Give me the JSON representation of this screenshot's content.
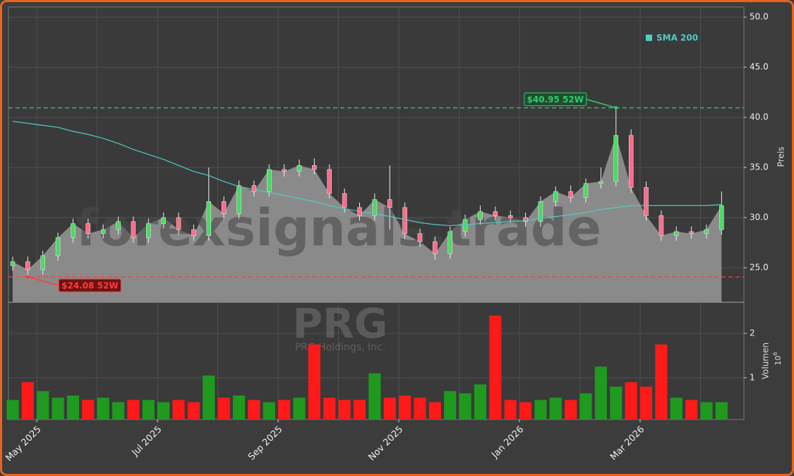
{
  "chart_data": {
    "type": "candlestick",
    "watermark": "forexsignals.trade",
    "ticker": "PRG",
    "company": "PRG Holdings, Inc.",
    "ylabel": "Preis",
    "volume_label": "Volumen",
    "volume_scale_base": "10",
    "volume_scale_exponent": "6",
    "x": [
      0.6,
      0.85,
      1.1,
      1.35,
      1.6,
      1.85,
      2.1,
      2.35,
      2.6,
      2.85,
      3.1,
      3.35,
      3.6,
      3.85,
      4.1,
      4.35,
      4.6,
      4.85,
      5.1,
      5.35,
      5.6,
      5.85,
      6.1,
      6.35,
      6.6,
      6.85,
      7.1,
      7.35,
      7.6,
      7.85,
      8.1,
      8.35,
      8.6,
      8.85,
      9.1,
      9.35,
      9.6,
      9.85,
      10.1,
      10.35,
      10.6,
      10.85,
      11.1,
      11.35,
      11.6,
      11.85,
      12.1,
      12.35
    ],
    "open": [
      25.2,
      25.6,
      24.8,
      26.2,
      28.0,
      29.4,
      28.4,
      28.8,
      29.6,
      28.0,
      29.4,
      30.0,
      28.8,
      28.2,
      31.6,
      30.4,
      33.2,
      32.6,
      34.8,
      34.6,
      35.2,
      34.8,
      32.4,
      31.0,
      30.2,
      31.8,
      31.0,
      28.4,
      27.6,
      26.4,
      28.6,
      29.8,
      30.6,
      30.2,
      30.0,
      29.6,
      31.6,
      32.6,
      32.0,
      33.4,
      33.6,
      38.2,
      33.0,
      30.2,
      28.2,
      28.6,
      28.4,
      28.8
    ],
    "high": [
      26.1,
      26.1,
      26.7,
      28.5,
      29.9,
      29.9,
      29.3,
      30.1,
      30.1,
      29.9,
      30.5,
      30.5,
      29.3,
      35.0,
      32.1,
      33.7,
      33.7,
      35.3,
      35.3,
      35.8,
      35.9,
      35.3,
      32.9,
      31.5,
      32.4,
      35.2,
      31.5,
      28.9,
      28.1,
      29.1,
      30.3,
      31.2,
      31.1,
      30.7,
      30.5,
      32.1,
      33.1,
      33.2,
      33.9,
      35.0,
      40.95,
      38.8,
      33.6,
      30.7,
      29.1,
      29.1,
      29.3,
      32.6
    ],
    "low": [
      24.7,
      24.08,
      24.3,
      25.7,
      27.5,
      27.9,
      27.9,
      28.3,
      27.5,
      27.5,
      28.9,
      28.3,
      27.7,
      27.7,
      29.9,
      29.9,
      32.1,
      32.1,
      34.1,
      34.1,
      34.3,
      31.9,
      30.5,
      29.7,
      29.7,
      28.8,
      27.9,
      27.1,
      25.8,
      25.9,
      28.1,
      29.3,
      29.7,
      29.5,
      29.1,
      29.1,
      31.1,
      31.5,
      31.5,
      32.9,
      33.1,
      32.5,
      29.7,
      27.7,
      27.7,
      27.9,
      27.9,
      28.3
    ],
    "close": [
      25.6,
      24.8,
      26.2,
      28.0,
      29.4,
      28.4,
      28.8,
      29.6,
      28.0,
      29.4,
      30.0,
      28.8,
      28.2,
      31.6,
      30.4,
      33.2,
      32.6,
      34.8,
      34.6,
      35.2,
      34.8,
      32.4,
      31.0,
      30.2,
      31.8,
      31.0,
      28.4,
      27.6,
      26.4,
      28.6,
      29.8,
      30.6,
      30.2,
      30.0,
      29.6,
      31.6,
      32.6,
      32.0,
      33.4,
      33.6,
      38.2,
      33.0,
      30.2,
      28.2,
      28.6,
      28.4,
      28.8,
      31.2
    ],
    "volume": [
      0.5,
      0.9,
      0.7,
      0.55,
      0.6,
      0.5,
      0.55,
      0.45,
      0.5,
      0.5,
      0.45,
      0.5,
      0.45,
      1.05,
      0.55,
      0.6,
      0.5,
      0.45,
      0.5,
      0.55,
      1.75,
      0.55,
      0.5,
      0.5,
      1.1,
      0.55,
      0.6,
      0.55,
      0.45,
      0.7,
      0.65,
      0.85,
      2.4,
      0.5,
      0.45,
      0.5,
      0.55,
      0.5,
      0.65,
      1.25,
      0.8,
      0.9,
      0.8,
      1.75,
      0.55,
      0.5,
      0.45,
      0.45
    ],
    "up_color": "#4cd964",
    "down_color": "#ff6b8a",
    "volume_up_color": "#1f9a1f",
    "volume_down_color": "#ff1a1a",
    "area_color": "#8a8a8a",
    "sma": {
      "name": "SMA 200",
      "color": "#4ecdc4",
      "values": [
        39.6,
        39.4,
        39.2,
        39.0,
        38.6,
        38.3,
        37.9,
        37.4,
        36.8,
        36.3,
        35.8,
        35.2,
        34.6,
        34.2,
        33.6,
        33.1,
        32.8,
        32.5,
        32.2,
        31.9,
        31.6,
        31.2,
        30.9,
        30.6,
        30.4,
        30.1,
        29.8,
        29.5,
        29.3,
        29.2,
        29.3,
        29.4,
        29.5,
        29.6,
        29.7,
        29.9,
        30.1,
        30.3,
        30.5,
        30.8,
        31.0,
        31.2,
        31.2,
        31.2,
        31.2,
        31.2,
        31.2,
        31.3
      ]
    },
    "hlines": [
      {
        "value": 40.95,
        "label": "$40.95 52W",
        "color": "#2ecc71"
      },
      {
        "value": 24.08,
        "label": "$24.08 52W",
        "color": "#ff3b3b"
      }
    ],
    "xlim": [
      0.53,
      12.72
    ],
    "xticks": [
      {
        "value": 1,
        "label": "May 2025"
      },
      {
        "value": 3,
        "label": "Jul 2025"
      },
      {
        "value": 5,
        "label": "Sep 2025"
      },
      {
        "value": 7,
        "label": "Nov 2025"
      },
      {
        "value": 9,
        "label": "Jan 2026"
      },
      {
        "value": 11,
        "label": "Mar 2026"
      }
    ],
    "xgrid": [
      1,
      2,
      3,
      4,
      5,
      6,
      7,
      8,
      9,
      10,
      11,
      12
    ],
    "ylim": [
      21.55,
      51.0
    ],
    "yticks": [
      {
        "value": 25,
        "label": "25.0"
      },
      {
        "value": 30,
        "label": "30.0"
      },
      {
        "value": 35,
        "label": "35.0"
      },
      {
        "value": 40,
        "label": "40.0"
      },
      {
        "value": 45,
        "label": "45.0"
      },
      {
        "value": 50,
        "label": "50.0"
      }
    ],
    "volume_ylim": [
      0.06,
      2.7
    ],
    "volume_yticks": [
      1,
      2
    ]
  }
}
